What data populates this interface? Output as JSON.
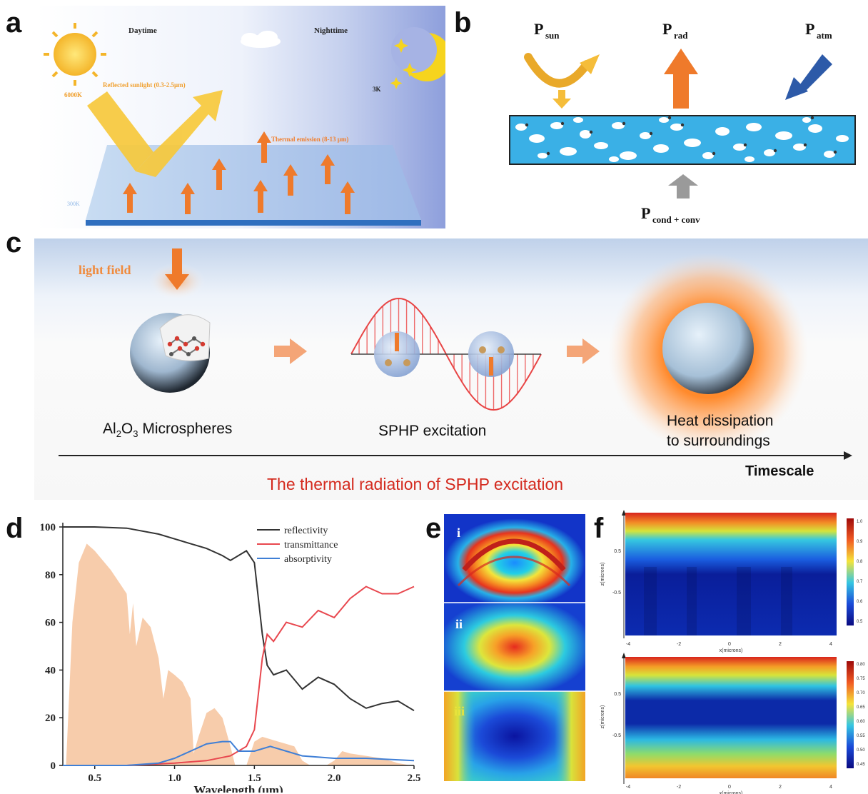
{
  "panel_labels": {
    "a": "a",
    "b": "b",
    "c": "c",
    "d": "d",
    "e": "e",
    "f": "f"
  },
  "panel_a": {
    "daytime": "Daytime",
    "nighttime": "Nighttime",
    "sun_temp": "6000K",
    "sky_temp": "3K",
    "surface_temp": "300K",
    "reflected": "Reflected sunlight (0.3-2.5μm)",
    "thermal": "Thermal emission (8-13 μm)"
  },
  "panel_b": {
    "p": "P",
    "sun_sub": "sun",
    "rad_sub": "rad",
    "atm_sub": "atm",
    "cond_sub": "cond + conv"
  },
  "panel_c": {
    "light_field": "light field",
    "micro_main": "Al",
    "micro_sub2": "2",
    "micro_mid": "O",
    "micro_sub3": "3",
    "micro_tail": "  Microspheres",
    "sphp": "SPHP excitation",
    "heat_line1": "Heat dissipation",
    "heat_line2": "to surroundings",
    "timescale": "Timescale",
    "caption": "The thermal radiation of SPHP excitation"
  },
  "chart_data": {
    "type": "line",
    "xlabel": "Wavelength (μm)",
    "ylabel": "",
    "xlim": [
      0.3,
      2.5
    ],
    "ylim": [
      0,
      100
    ],
    "xticks": [
      "0.5",
      "1.0",
      "1.5",
      "2.0",
      "2.5"
    ],
    "yticks": [
      "0",
      "20",
      "40",
      "60",
      "80",
      "100"
    ],
    "legend_position": "top-right",
    "series": [
      {
        "name": "reflectivity",
        "color": "#333333",
        "x": [
          0.3,
          0.5,
          0.7,
          0.9,
          1.0,
          1.1,
          1.2,
          1.3,
          1.35,
          1.4,
          1.45,
          1.5,
          1.55,
          1.58,
          1.62,
          1.7,
          1.8,
          1.9,
          2.0,
          2.1,
          2.2,
          2.3,
          2.4,
          2.5
        ],
        "y": [
          100,
          100,
          99.5,
          97,
          95,
          93,
          91,
          88,
          86,
          88,
          90,
          85,
          55,
          42,
          38,
          40,
          32,
          37,
          34,
          28,
          24,
          26,
          27,
          23
        ]
      },
      {
        "name": "transmittance",
        "color": "#e8474e",
        "x": [
          0.3,
          0.7,
          1.0,
          1.2,
          1.35,
          1.45,
          1.5,
          1.55,
          1.58,
          1.62,
          1.7,
          1.8,
          1.9,
          2.0,
          2.1,
          2.2,
          2.3,
          2.4,
          2.5
        ],
        "y": [
          0,
          0,
          1,
          2,
          4,
          8,
          15,
          45,
          55,
          52,
          60,
          58,
          65,
          62,
          70,
          75,
          72,
          72,
          75
        ]
      },
      {
        "name": "absorptivity",
        "color": "#3f7fd6",
        "x": [
          0.3,
          0.7,
          0.9,
          1.0,
          1.1,
          1.2,
          1.3,
          1.35,
          1.4,
          1.5,
          1.6,
          1.7,
          1.8,
          2.0,
          2.2,
          2.5
        ],
        "y": [
          0,
          0,
          1,
          3,
          6,
          9,
          10,
          10,
          6,
          6,
          8,
          6,
          4,
          3,
          3,
          2
        ]
      }
    ]
  },
  "panel_e": {
    "labels": [
      "i",
      "ii",
      "iii"
    ]
  },
  "panel_f": {
    "xlabel": "x(microns)",
    "ylabel": "z(microns)",
    "xticks": [
      "-4",
      "-2",
      "0",
      "2",
      "4"
    ],
    "yticks_top": [
      "0.5",
      "-0.5"
    ],
    "yticks_bottom": [
      "0.5",
      "-0.5"
    ],
    "colorbar_top": [
      "1.0",
      "0.9",
      "0.8",
      "0.7",
      "0.6",
      "0.5"
    ],
    "colorbar_bottom": [
      "0.80",
      "0.75",
      "0.70",
      "0.65",
      "0.60",
      "0.55",
      "0.50",
      "0.45"
    ]
  }
}
